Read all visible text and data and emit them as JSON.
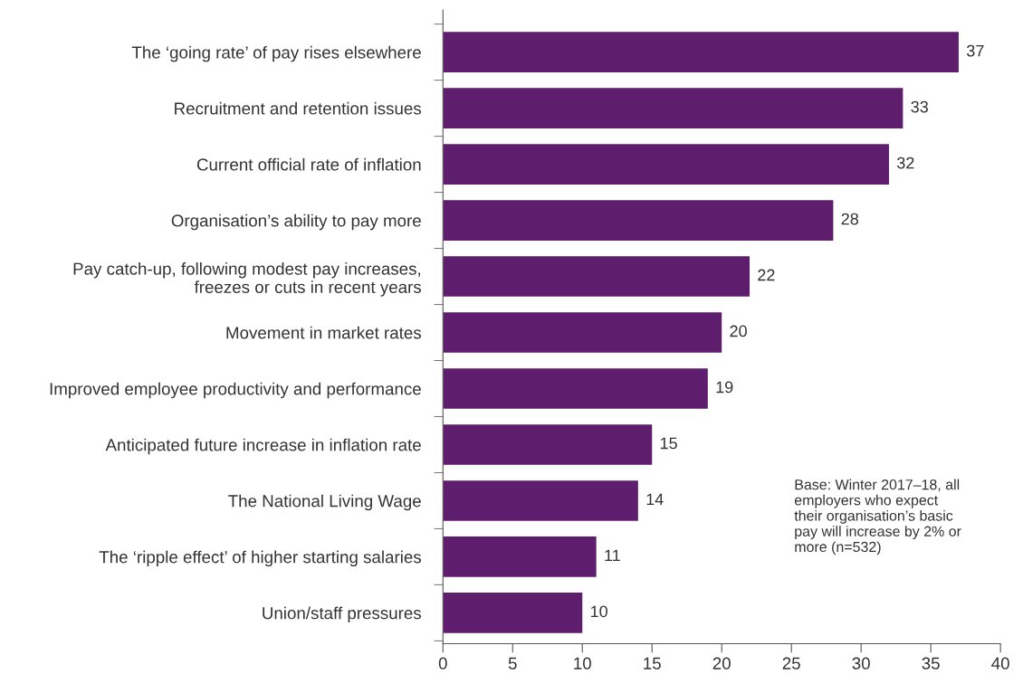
{
  "chart_data": {
    "type": "bar",
    "orientation": "horizontal",
    "categories": [
      "The ‘going rate’ of pay rises elsewhere",
      "Recruitment and retention issues",
      "Current official rate of inflation",
      "Organisation’s ability to pay more",
      "Pay catch-up, following modest pay increases,\nfreezes or cuts in recent years",
      "Movement in market rates",
      "Improved employee productivity and performance",
      "Anticipated future increase in inflation rate",
      "The National Living Wage",
      "The ‘ripple effect’ of higher starting salaries",
      "Union/staff pressures"
    ],
    "values": [
      37,
      33,
      32,
      28,
      22,
      20,
      19,
      15,
      14,
      11,
      10
    ],
    "color": "#5f1d6e",
    "xlim": [
      0,
      40
    ],
    "xticks": [
      0,
      5,
      10,
      15,
      20,
      25,
      30,
      35,
      40
    ],
    "data_labels": true,
    "grid": false,
    "legend": false,
    "annotations": [
      "Base: Winter 2017–18, all\nemployers who expect\ntheir organisation’s basic\npay will increase by 2% or\nmore (n=532)"
    ]
  }
}
